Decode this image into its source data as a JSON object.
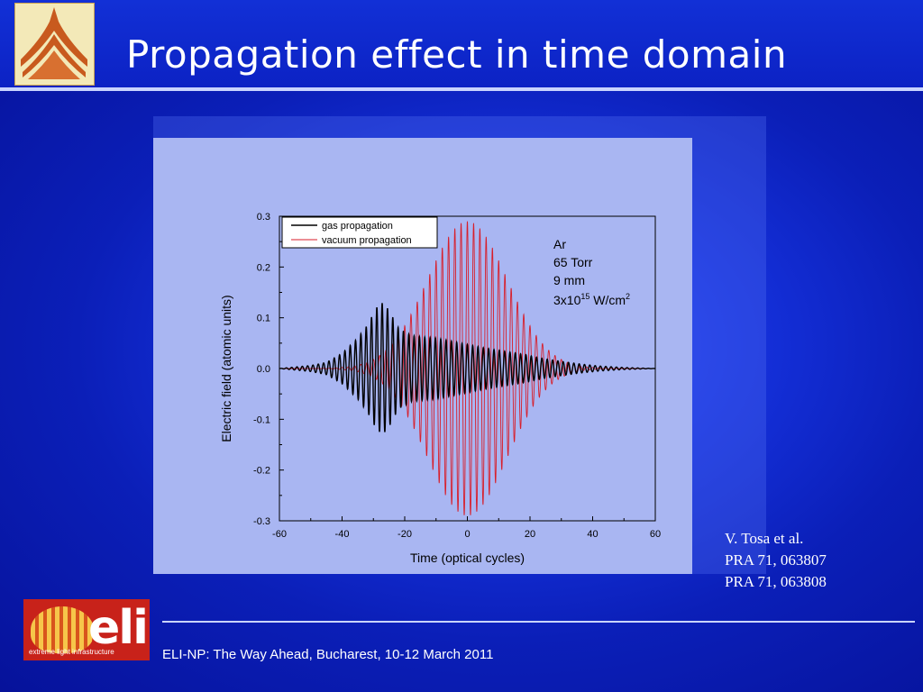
{
  "slide": {
    "title": "Propagation effect in time domain",
    "footer": "ELI-NP: The Way Ahead, Bucharest, 10-12 March 2011",
    "citation": [
      "V. Tosa et al.",
      "PRA 71, 063807",
      "PRA 71, 063808"
    ],
    "logo_bottom": {
      "letters": "eli",
      "tagline": "extreme light infrastructure"
    },
    "colors": {
      "background": "#0b1fb8",
      "panel": "#a9b6f2",
      "gas": "#000000",
      "vacuum": "#d81e2a"
    }
  },
  "chart_data": {
    "type": "line",
    "title": "",
    "xlabel": "Time (optical cycles)",
    "ylabel": "Electric field (atomic units)",
    "xlim": [
      -60,
      60
    ],
    "ylim": [
      -0.3,
      0.3
    ],
    "xticks": [
      -60,
      -40,
      -20,
      0,
      20,
      40,
      60
    ],
    "yticks": [
      -0.3,
      -0.2,
      -0.1,
      0.0,
      0.1,
      0.2,
      0.3
    ],
    "ytick_labels": [
      "-0.3",
      "-0.2",
      "-0.1",
      "0.0",
      "0.1",
      "0.2",
      "0.3"
    ],
    "legend": {
      "placement": "top-left"
    },
    "annotation": {
      "lines": [
        "Ar",
        "65 Torr",
        "9 mm"
      ],
      "intensity": {
        "base": "3x10",
        "exp": "15",
        "unit": " W/cm",
        "unit_exp": "2"
      }
    },
    "series": [
      {
        "name": "gas propagation",
        "color": "#000000",
        "envelope": [
          [
            -60,
            0.0
          ],
          [
            -50,
            0.006
          ],
          [
            -45,
            0.012
          ],
          [
            -40,
            0.03
          ],
          [
            -35,
            0.06
          ],
          [
            -32,
            0.085
          ],
          [
            -29,
            0.12
          ],
          [
            -27,
            0.13
          ],
          [
            -25,
            0.115
          ],
          [
            -22,
            0.08
          ],
          [
            -18,
            0.065
          ],
          [
            -14,
            0.062
          ],
          [
            -10,
            0.06
          ],
          [
            -6,
            0.055
          ],
          [
            -2,
            0.05
          ],
          [
            2,
            0.045
          ],
          [
            6,
            0.04
          ],
          [
            10,
            0.036
          ],
          [
            14,
            0.032
          ],
          [
            18,
            0.028
          ],
          [
            24,
            0.02
          ],
          [
            30,
            0.014
          ],
          [
            36,
            0.009
          ],
          [
            42,
            0.005
          ],
          [
            50,
            0.002
          ],
          [
            60,
            0.0
          ]
        ],
        "cycle": 1.7,
        "phase": 0
      },
      {
        "name": "vacuum propagation",
        "color": "#d81e2a",
        "center": 0,
        "peak": 0.29,
        "width": 18,
        "cycle": 2.0,
        "phase": 0
      }
    ]
  }
}
